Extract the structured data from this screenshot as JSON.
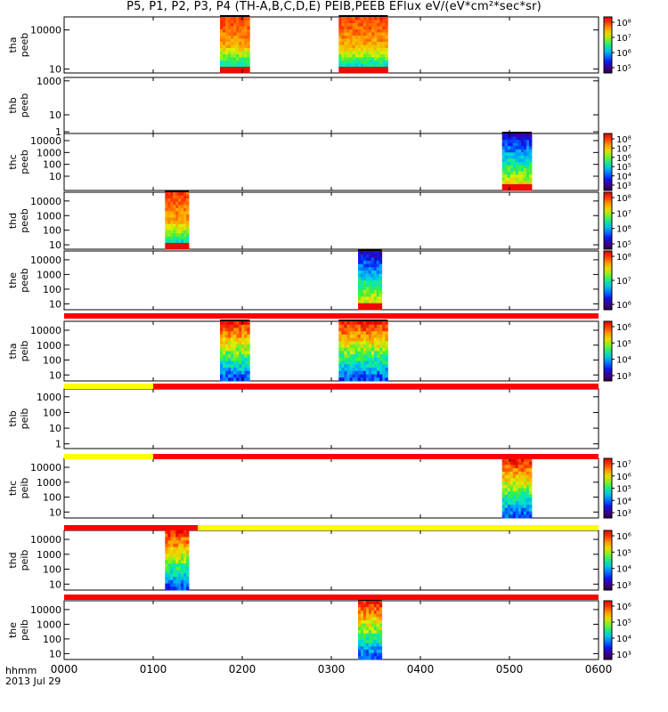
{
  "title": "P5, P1, P2, P3, P4 (TH-A,B,C,D,E) PEIB,PEEB EFlux eV/(eV*cm²*sec*sr)",
  "footer": {
    "axis_label": "hhmm",
    "date": "2013 Jul 29"
  },
  "colors": {
    "bar_red": "#ff0000",
    "bar_yellow": "#ffff00",
    "axis": "#000000"
  },
  "chart_data": {
    "type": "heatmap",
    "x_axis": {
      "label": "hhmm",
      "range": [
        "0000",
        "0600"
      ],
      "ticks": [
        "0000",
        "0100",
        "0200",
        "0300",
        "0400",
        "0500",
        "0600"
      ]
    },
    "y_scale": "log",
    "panels": [
      {
        "label": [
          "thb",
          "peeb"
        ],
        "ylabel": "thb peeb"
      },
      {
        "label": [
          "thc",
          "peeb"
        ],
        "ylabel": "thc peeb"
      },
      {
        "label": [
          "thd",
          "peeb"
        ],
        "ylabel": "thd peeb"
      },
      {
        "label": [
          "the",
          "peeb"
        ],
        "ylabel": "the peeb"
      },
      {
        "label": [
          "tha",
          "peib"
        ],
        "ylabel": "tha peib"
      },
      {
        "label": [
          "thb",
          "peib"
        ],
        "ylabel": "thb peib"
      },
      {
        "label": [
          "thc",
          "peib"
        ],
        "ylabel": "thc peib"
      },
      {
        "label": [
          "thd",
          "peib"
        ],
        "ylabel": "thd peib"
      },
      {
        "label": [
          "the",
          "peib"
        ],
        "ylabel": "the peib"
      }
    ],
    "first_panel": {
      "label": [
        "tha",
        "peeb"
      ],
      "ylabel": "tha peeb"
    },
    "y_tick_labels": [
      "10000",
      "1000",
      "100",
      "10",
      "1"
    ],
    "colorbar_ticks": {
      "tha_peeb": [
        "10⁸",
        "10⁷",
        "10⁶",
        "10⁵"
      ],
      "thc_peeb": [
        "10⁸",
        "10⁷",
        "10⁶",
        "10⁵",
        "10⁴",
        "10³"
      ],
      "thd_peeb": [
        "10⁸",
        "10⁷",
        "10⁶",
        "10⁵"
      ],
      "the_peeb": [
        "10⁸",
        "10⁷",
        "10⁶"
      ],
      "tha_peib": [
        "10⁶",
        "10⁵",
        "10⁴",
        "10³"
      ],
      "thc_peib": [
        "10⁷",
        "10⁶",
        "10⁵",
        "10⁴",
        "10³"
      ],
      "thd_peib": [
        "10⁶",
        "10⁵",
        "10⁴",
        "10³"
      ],
      "the_peib": [
        "10⁶",
        "10⁵",
        "10⁴",
        "10³"
      ]
    },
    "data_intervals_hhmm": {
      "tha_peeb": [
        [
          "0145",
          "0205"
        ],
        [
          "0305",
          "0338"
        ]
      ],
      "thc_peeb": [
        [
          "0455",
          "0515"
        ]
      ],
      "thd_peeb": [
        [
          "0108",
          "0124"
        ]
      ],
      "the_peeb": [
        [
          "0318",
          "0334"
        ]
      ],
      "tha_peib": [
        [
          "0145",
          "0205"
        ],
        [
          "0305",
          "0338"
        ]
      ],
      "thc_peib": [
        [
          "0455",
          "0515"
        ]
      ],
      "thd_peib": [
        [
          "0108",
          "0124"
        ]
      ],
      "the_peib": [
        [
          "0318",
          "0334"
        ]
      ]
    },
    "mode_bars": [
      {
        "segments": [
          {
            "from": "0000",
            "to": "0600",
            "color": "red"
          }
        ]
      },
      {
        "segments": [
          {
            "from": "0000",
            "to": "0100",
            "color": "yellow"
          },
          {
            "from": "0100",
            "to": "0600",
            "color": "red"
          }
        ]
      },
      {
        "segments": [
          {
            "from": "0000",
            "to": "0100",
            "color": "yellow"
          },
          {
            "from": "0100",
            "to": "0600",
            "color": "red"
          }
        ]
      },
      {
        "segments": [
          {
            "from": "0000",
            "to": "0130",
            "color": "red"
          },
          {
            "from": "0130",
            "to": "0600",
            "color": "yellow"
          }
        ]
      },
      {
        "segments": [
          {
            "from": "0000",
            "to": "0600",
            "color": "red"
          }
        ]
      }
    ]
  }
}
